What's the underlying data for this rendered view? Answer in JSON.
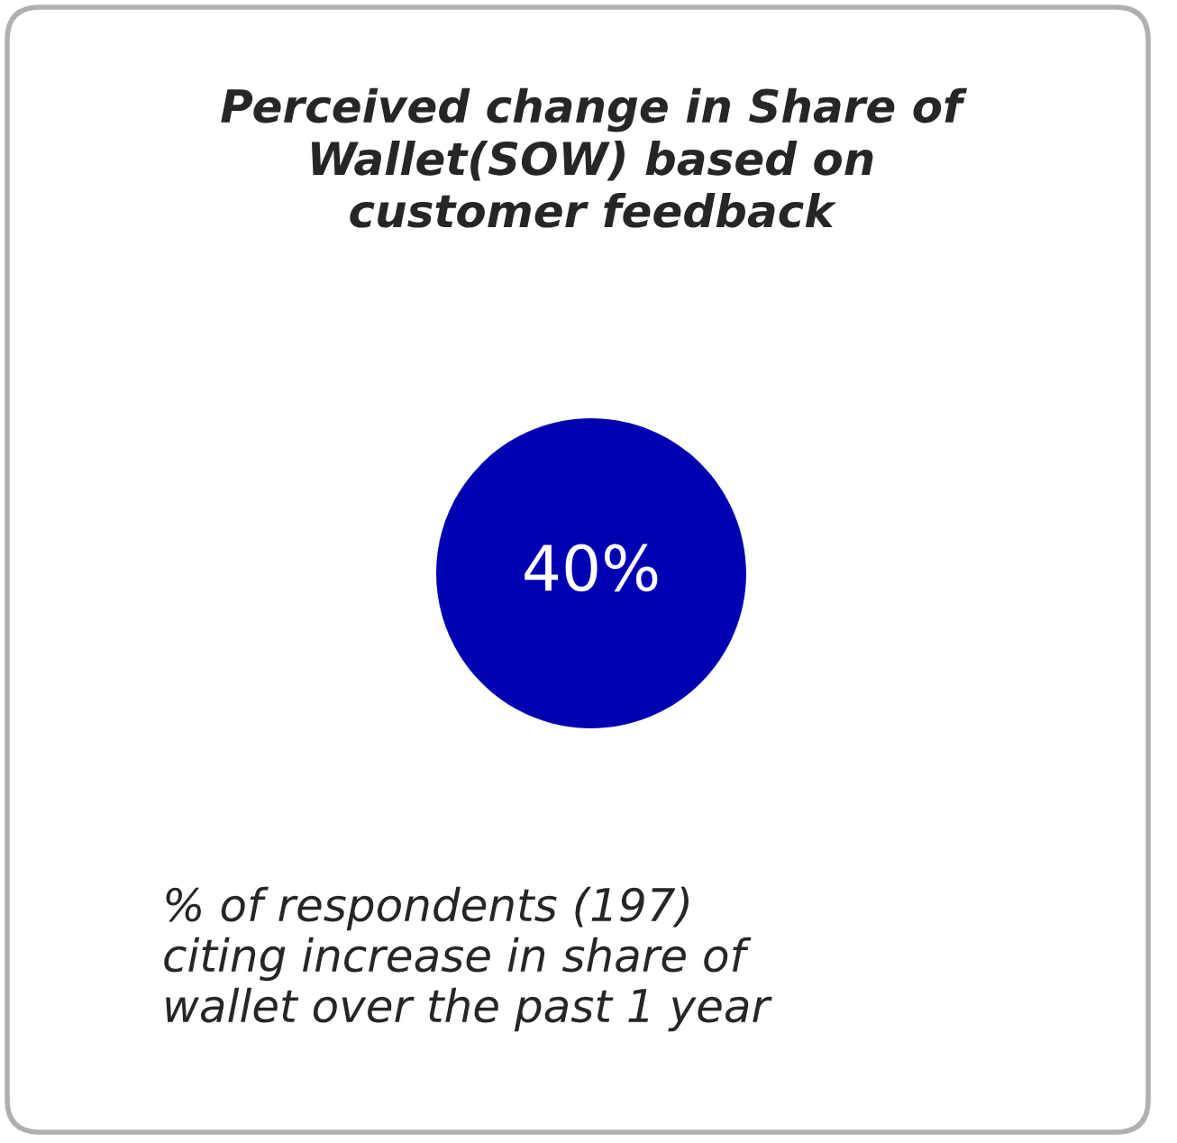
{
  "chart_data": {
    "type": "other",
    "title": "Perceived change in Share of\nWallet(SOW) based on\ncustomer feedback",
    "values": [
      40
    ],
    "value_labels": [
      "40%"
    ],
    "color": "#0000b3",
    "annotations": [
      "% of respondents (197)\nciting increase in share of\nwallet over the past 1 year"
    ]
  }
}
